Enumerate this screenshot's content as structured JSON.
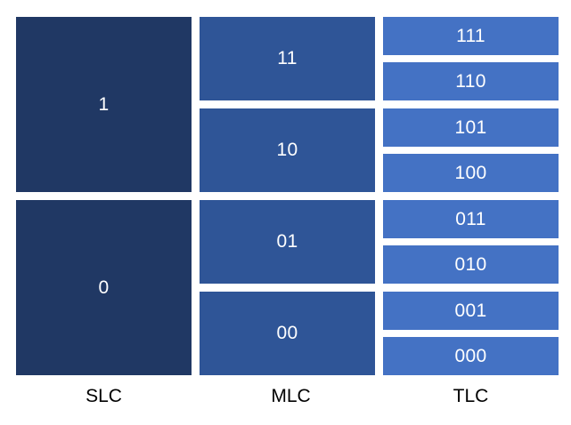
{
  "columns": {
    "slc": {
      "label": "SLC",
      "levels": [
        "1",
        "0"
      ]
    },
    "mlc": {
      "label": "MLC",
      "levels": [
        "11",
        "10",
        "01",
        "00"
      ]
    },
    "tlc": {
      "label": "TLC",
      "levels": [
        "111",
        "110",
        "101",
        "100",
        "011",
        "010",
        "001",
        "000"
      ]
    }
  },
  "colors": {
    "slc_fill": "#203864",
    "mlc_fill": "#2f5597",
    "tlc_fill": "#4472c4",
    "cell_text": "#ffffff",
    "label_text": "#000000"
  }
}
